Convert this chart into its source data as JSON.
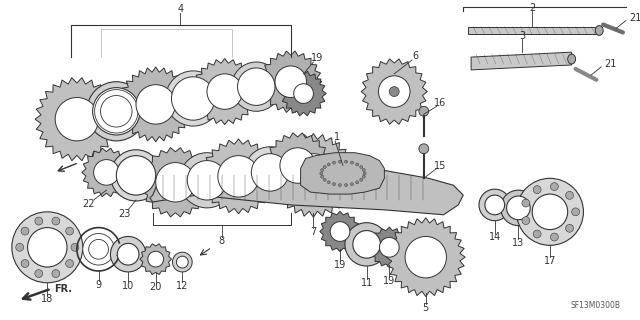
{
  "part_code": "SF13M0300B",
  "bg": "#ffffff",
  "lc": "#333333",
  "fig_w": 6.4,
  "fig_h": 3.2,
  "dpi": 100
}
